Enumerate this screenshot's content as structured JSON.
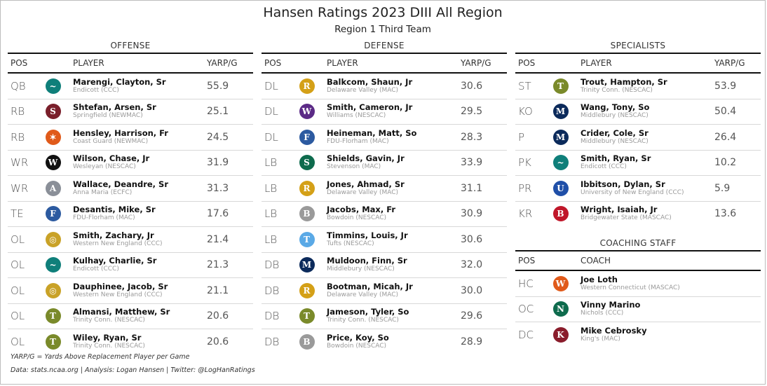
{
  "title": "Hansen Ratings 2023 DIII All Region",
  "subtitle": "Region 1 Third Team",
  "headers": {
    "pos": "POS",
    "player": "PLAYER",
    "yarp": "YARP/G",
    "coach": "COACH"
  },
  "offense": {
    "title": "OFFENSE",
    "rows": [
      {
        "pos": "QB",
        "name": "Marengi, Clayton, Sr",
        "team": "Endicott (CCC)",
        "yarp": "55.9",
        "logo": {
          "icon": "endicott-gull-icon",
          "color": "#0f7f7a",
          "glyph": "~"
        }
      },
      {
        "pos": "RB",
        "name": "Shtefan, Arsen, Sr",
        "team": "Springfield (NEWMAC)",
        "yarp": "25.1",
        "logo": {
          "icon": "springfield-s-icon",
          "color": "#7a1f2b",
          "glyph": "S"
        }
      },
      {
        "pos": "RB",
        "name": "Hensley, Harrison, Fr",
        "team": "Coast Guard (NEWMAC)",
        "yarp": "24.5",
        "logo": {
          "icon": "coast-guard-bear-icon",
          "color": "#e05a1a",
          "glyph": "✶"
        }
      },
      {
        "pos": "WR",
        "name": "Wilson, Chase, Jr",
        "team": "Wesleyan (NESCAC)",
        "yarp": "31.9",
        "logo": {
          "icon": "wesleyan-w-icon",
          "color": "#111111",
          "glyph": "W"
        }
      },
      {
        "pos": "WR",
        "name": "Wallace, Deandre, Sr",
        "team": "Anna Maria (ECFC)",
        "yarp": "31.3",
        "logo": {
          "icon": "anna-maria-wolf-icon",
          "color": "#8a8f98",
          "glyph": "A"
        }
      },
      {
        "pos": "TE",
        "name": "Desantis, Mike, Sr",
        "team": "FDU-Florham (MAC)",
        "yarp": "17.6",
        "logo": {
          "icon": "fdu-devil-icon",
          "color": "#2c5aa0",
          "glyph": "F"
        }
      },
      {
        "pos": "OL",
        "name": "Smith, Zachary, Jr",
        "team": "Western New England (CCC)",
        "yarp": "21.4",
        "logo": {
          "icon": "wne-seal-icon",
          "color": "#c9a227",
          "glyph": "◎"
        }
      },
      {
        "pos": "OL",
        "name": "Kulhay, Charlie, Sr",
        "team": "Endicott (CCC)",
        "yarp": "21.3",
        "logo": {
          "icon": "endicott-gull-icon",
          "color": "#0f7f7a",
          "glyph": "~"
        }
      },
      {
        "pos": "OL",
        "name": "Dauphinee, Jacob, Sr",
        "team": "Western New England (CCC)",
        "yarp": "21.1",
        "logo": {
          "icon": "wne-seal-icon",
          "color": "#c9a227",
          "glyph": "◎"
        }
      },
      {
        "pos": "OL",
        "name": "Almansi, Matthew, Sr",
        "team": "Trinity Conn. (NESCAC)",
        "yarp": "20.6",
        "logo": {
          "icon": "trinity-bantam-icon",
          "color": "#7a8a2a",
          "glyph": "T"
        }
      },
      {
        "pos": "OL",
        "name": "Wiley, Ryan, Sr",
        "team": "Trinity Conn. (NESCAC)",
        "yarp": "20.6",
        "logo": {
          "icon": "trinity-bantam-icon",
          "color": "#7a8a2a",
          "glyph": "T"
        }
      }
    ]
  },
  "defense": {
    "title": "DEFENSE",
    "rows": [
      {
        "pos": "DL",
        "name": "Balkcom, Shaun, Jr",
        "team": "Delaware Valley (MAC)",
        "yarp": "30.6",
        "logo": {
          "icon": "delval-ram-icon",
          "color": "#d4a017",
          "glyph": "R"
        }
      },
      {
        "pos": "DL",
        "name": "Smith, Cameron, Jr",
        "team": "Williams (NESCAC)",
        "yarp": "29.5",
        "logo": {
          "icon": "williams-logo-icon",
          "color": "#5b2a86",
          "glyph": "W"
        }
      },
      {
        "pos": "DL",
        "name": "Heineman, Matt, So",
        "team": "FDU-Florham (MAC)",
        "yarp": "28.3",
        "logo": {
          "icon": "fdu-devil-icon",
          "color": "#2c5aa0",
          "glyph": "F"
        }
      },
      {
        "pos": "LB",
        "name": "Shields, Gavin, Jr",
        "team": "Stevenson (MAC)",
        "yarp": "33.9",
        "logo": {
          "icon": "stevenson-mustang-icon",
          "color": "#0e6b4d",
          "glyph": "S"
        }
      },
      {
        "pos": "LB",
        "name": "Jones, Ahmad, Sr",
        "team": "Delaware Valley (MAC)",
        "yarp": "31.1",
        "logo": {
          "icon": "delval-ram-icon",
          "color": "#d4a017",
          "glyph": "R"
        }
      },
      {
        "pos": "LB",
        "name": "Jacobs, Max, Fr",
        "team": "Bowdoin (NESCAC)",
        "yarp": "30.9",
        "logo": {
          "icon": "bowdoin-polar-bear-icon",
          "color": "#9a9a9a",
          "glyph": "B"
        }
      },
      {
        "pos": "LB",
        "name": "Timmins, Louis, Jr",
        "team": "Tufts (NESCAC)",
        "yarp": "30.6",
        "logo": {
          "icon": "tufts-elephant-icon",
          "color": "#5aa9e6",
          "glyph": "T"
        }
      },
      {
        "pos": "DB",
        "name": "Muldoon, Finn, Sr",
        "team": "Middlebury (NESCAC)",
        "yarp": "32.0",
        "logo": {
          "icon": "middlebury-m-icon",
          "color": "#0b2a5b",
          "glyph": "M"
        }
      },
      {
        "pos": "DB",
        "name": "Bootman, Micah, Jr",
        "team": "Delaware Valley (MAC)",
        "yarp": "30.0",
        "logo": {
          "icon": "delval-ram-icon",
          "color": "#d4a017",
          "glyph": "R"
        }
      },
      {
        "pos": "DB",
        "name": "Jameson, Tyler, So",
        "team": "Trinity Conn. (NESCAC)",
        "yarp": "29.6",
        "logo": {
          "icon": "trinity-bantam-icon",
          "color": "#7a8a2a",
          "glyph": "T"
        }
      },
      {
        "pos": "DB",
        "name": "Price, Koy, So",
        "team": "Bowdoin (NESCAC)",
        "yarp": "28.9",
        "logo": {
          "icon": "bowdoin-polar-bear-icon",
          "color": "#9a9a9a",
          "glyph": "B"
        }
      }
    ]
  },
  "specialists": {
    "title": "SPECIALISTS",
    "rows": [
      {
        "pos": "ST",
        "name": "Trout, Hampton, Sr",
        "team": "Trinity Conn. (NESCAC)",
        "yarp": "53.9",
        "logo": {
          "icon": "trinity-bantam-icon",
          "color": "#7a8a2a",
          "glyph": "T"
        }
      },
      {
        "pos": "KO",
        "name": "Wang, Tony, So",
        "team": "Middlebury (NESCAC)",
        "yarp": "50.4",
        "logo": {
          "icon": "middlebury-m-icon",
          "color": "#0b2a5b",
          "glyph": "M"
        }
      },
      {
        "pos": "P",
        "name": "Crider, Cole, Sr",
        "team": "Middlebury (NESCAC)",
        "yarp": "26.4",
        "logo": {
          "icon": "middlebury-m-icon",
          "color": "#0b2a5b",
          "glyph": "M"
        }
      },
      {
        "pos": "PK",
        "name": "Smith, Ryan, Sr",
        "team": "Endicott (CCC)",
        "yarp": "10.2",
        "logo": {
          "icon": "endicott-gull-icon",
          "color": "#0f7f7a",
          "glyph": "~"
        }
      },
      {
        "pos": "PR",
        "name": "Ibbitson, Dylan, Sr",
        "team": "University of New England (CCC)",
        "yarp": "5.9",
        "logo": {
          "icon": "une-nor-easter-icon",
          "color": "#1f4fa8",
          "glyph": "U"
        }
      },
      {
        "pos": "KR",
        "name": "Wright, Isaiah, Jr",
        "team": "Bridgewater State (MASCAC)",
        "yarp": "13.6",
        "logo": {
          "icon": "bridgewater-bear-icon",
          "color": "#c0172a",
          "glyph": "B"
        }
      }
    ]
  },
  "coaching": {
    "title": "COACHING STAFF",
    "rows": [
      {
        "pos": "HC",
        "name": "Joe Loth",
        "team": "Western Connecticut (MASCAC)",
        "logo": {
          "icon": "wcsu-shield-icon",
          "color": "#e05a1a",
          "glyph": "W"
        }
      },
      {
        "pos": "OC",
        "name": "Vinny Marino",
        "team": "Nichols (CCC)",
        "logo": {
          "icon": "nichols-bison-icon",
          "color": "#0e6b4d",
          "glyph": "N"
        }
      },
      {
        "pos": "DC",
        "name": "Mike Cebrosky",
        "team": "King's (MAC)",
        "logo": {
          "icon": "kings-lion-icon",
          "color": "#8a1c2b",
          "glyph": "K"
        }
      }
    ]
  },
  "footnote": "YARP/G = Yards Above Replacement Player per Game",
  "credits": "Data: stats.ncaa.org | Analysis: Logan Hansen | Twitter: @LogHanRatings"
}
